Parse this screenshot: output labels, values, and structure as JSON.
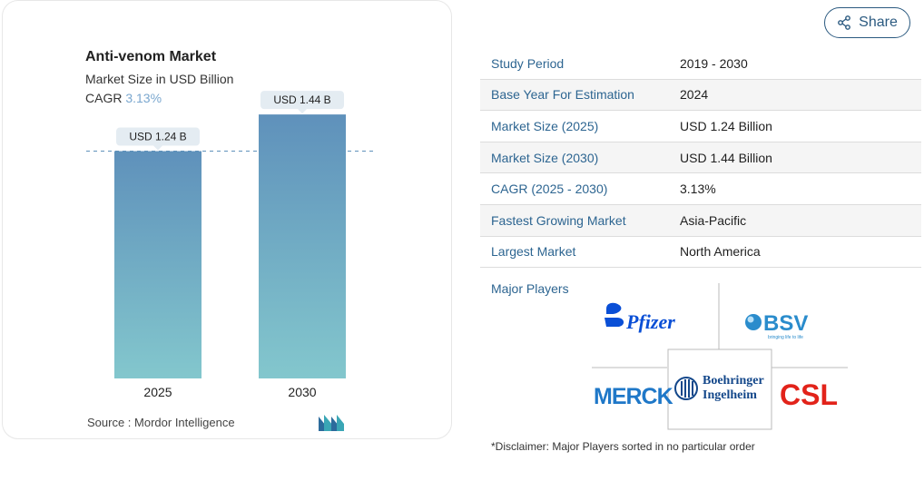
{
  "chart_data": {
    "type": "bar",
    "title": "Anti-venom Market",
    "subtitle": "Market Size in USD Billion",
    "cagr_label": "CAGR",
    "cagr_value": "3.13%",
    "categories": [
      "2025",
      "2030"
    ],
    "values": [
      1.24,
      1.44
    ],
    "data_labels": [
      "USD 1.24 B",
      "USD 1.44 B"
    ],
    "ylim": [
      0,
      1.5
    ],
    "reference_line_value": 1.24,
    "grid": false,
    "bar_gradient": [
      "#5f91bb",
      "#83c7cd"
    ]
  },
  "source": "Source :  Mordor Intelligence",
  "share": {
    "label": "Share",
    "icon": "share-icon"
  },
  "stats": [
    {
      "label": "Study Period",
      "value": "2019 - 2030"
    },
    {
      "label": "Base Year For Estimation",
      "value": "2024"
    },
    {
      "label": "Market Size (2025)",
      "value": "USD 1.24 Billion"
    },
    {
      "label": "Market Size (2030)",
      "value": "USD 1.44 Billion"
    },
    {
      "label": "CAGR (2025 - 2030)",
      "value": "3.13%"
    },
    {
      "label": "Fastest Growing Market",
      "value": "Asia-Pacific"
    },
    {
      "label": "Largest Market",
      "value": "North America"
    }
  ],
  "major_players_label": "Major Players",
  "players": [
    "Pfizer",
    "BSV",
    "MERCK",
    "Boehringer Ingelheim",
    "CSL"
  ],
  "player_logo_text": {
    "pfizer": "Pfizer",
    "bsv": "BSV",
    "bsv_tagline": "bringing life to life",
    "merck": "MERCK",
    "boehringer_line1": "Boehringer",
    "boehringer_line2": "Ingelheim",
    "csl": "CSL"
  },
  "disclaimer": "*Disclaimer: Major Players sorted in no particular order",
  "colors": {
    "accent": "#2d6591",
    "cagr": "#7aa7cf",
    "bar_top": "#5f91bb",
    "bar_bottom": "#83c7cd"
  }
}
